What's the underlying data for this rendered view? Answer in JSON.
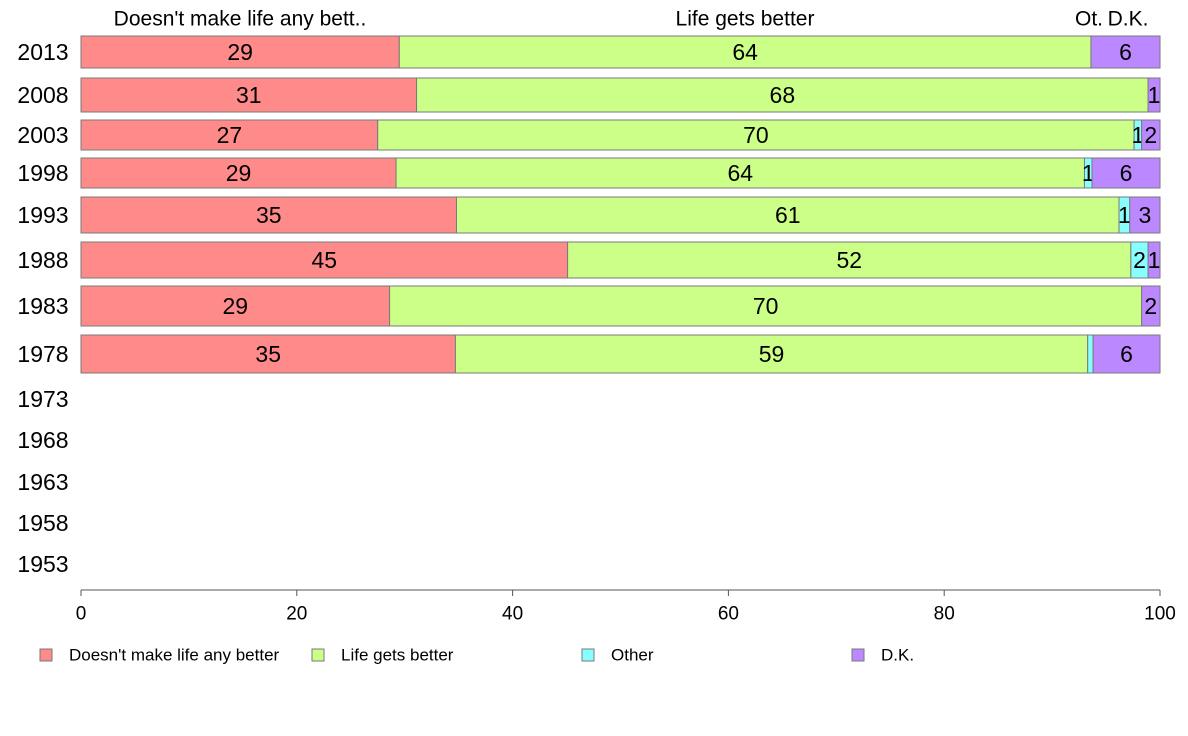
{
  "chart_data": {
    "type": "bar",
    "orientation": "horizontal",
    "stacked": true,
    "header_labels": [
      "Doesn't make life any bett..",
      "Life gets better",
      "Ot.",
      "D.K."
    ],
    "categories": [
      "2013",
      "2008",
      "2003",
      "1998",
      "1993",
      "1988",
      "1983",
      "1978",
      "1973",
      "1968",
      "1963",
      "1958",
      "1953"
    ],
    "series": [
      {
        "name": "Doesn't make life any better",
        "color": "#ff8a8a",
        "values": [
          29.5,
          31.1,
          27.5,
          29.2,
          34.8,
          45.1,
          28.6,
          34.7,
          null,
          null,
          null,
          null,
          null
        ],
        "labels": [
          "29",
          "31",
          "27",
          "29",
          "35",
          "45",
          "29",
          "35",
          "",
          "",
          "",
          "",
          ""
        ]
      },
      {
        "name": "Life gets better",
        "color": "#ccff88",
        "values": [
          64.1,
          67.8,
          70.1,
          63.8,
          61.4,
          52.2,
          69.7,
          58.6,
          null,
          null,
          null,
          null,
          null
        ],
        "labels": [
          "64",
          "68",
          "70",
          "64",
          "61",
          "52",
          "70",
          "59",
          "",
          "",
          "",
          "",
          ""
        ]
      },
      {
        "name": "Other",
        "color": "#88ffff",
        "values": [
          0,
          0,
          0.7,
          0.7,
          1.0,
          1.6,
          0,
          0.5,
          null,
          null,
          null,
          null,
          null
        ],
        "labels": [
          "",
          "",
          "1",
          "1",
          "1",
          "2",
          "",
          "",
          "",
          "",
          "",
          "",
          ""
        ]
      },
      {
        "name": "D.K.",
        "color": "#bb88ff",
        "values": [
          6.4,
          1.1,
          1.7,
          6.3,
          2.8,
          1.1,
          1.7,
          6.2,
          null,
          null,
          null,
          null,
          null
        ],
        "labels": [
          "6",
          "1",
          "2",
          "6",
          "3",
          "1",
          "2",
          "6",
          "",
          "",
          "",
          "",
          ""
        ]
      }
    ],
    "xlim": [
      0,
      100
    ],
    "xticks": [
      "0",
      "20",
      "40",
      "60",
      "80",
      "100"
    ],
    "legend_position": "bottom",
    "grid": false
  }
}
